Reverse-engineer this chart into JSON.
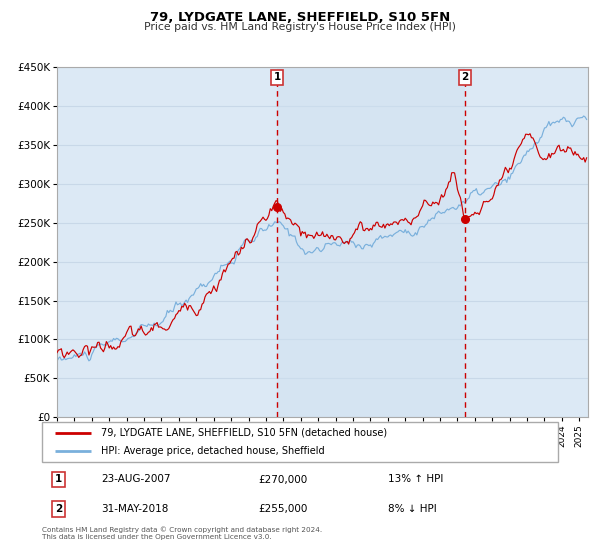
{
  "title": "79, LYDGATE LANE, SHEFFIELD, S10 5FN",
  "subtitle": "Price paid vs. HM Land Registry's House Price Index (HPI)",
  "red_label": "79, LYDGATE LANE, SHEFFIELD, S10 5FN (detached house)",
  "blue_label": "HPI: Average price, detached house, Sheffield",
  "annotation1_date": "23-AUG-2007",
  "annotation1_price": "£270,000",
  "annotation1_hpi": "13% ↑ HPI",
  "annotation2_date": "31-MAY-2018",
  "annotation2_price": "£255,000",
  "annotation2_hpi": "8% ↓ HPI",
  "footer": "Contains HM Land Registry data © Crown copyright and database right 2024.\nThis data is licensed under the Open Government Licence v3.0.",
  "ylim": [
    0,
    450000
  ],
  "yticks": [
    0,
    50000,
    100000,
    150000,
    200000,
    250000,
    300000,
    350000,
    400000,
    450000
  ],
  "xmin": 1995.0,
  "xmax": 2025.5,
  "sale1_x": 2007.64,
  "sale1_y": 270000,
  "sale2_x": 2018.42,
  "sale2_y": 255000,
  "plot_bg": "#dce9f5",
  "plot_bg_highlight": "#e8f2ff",
  "red_color": "#cc0000",
  "blue_color": "#7ab0dc",
  "grid_color": "#c8d8e8",
  "vline_color": "#cc0000"
}
